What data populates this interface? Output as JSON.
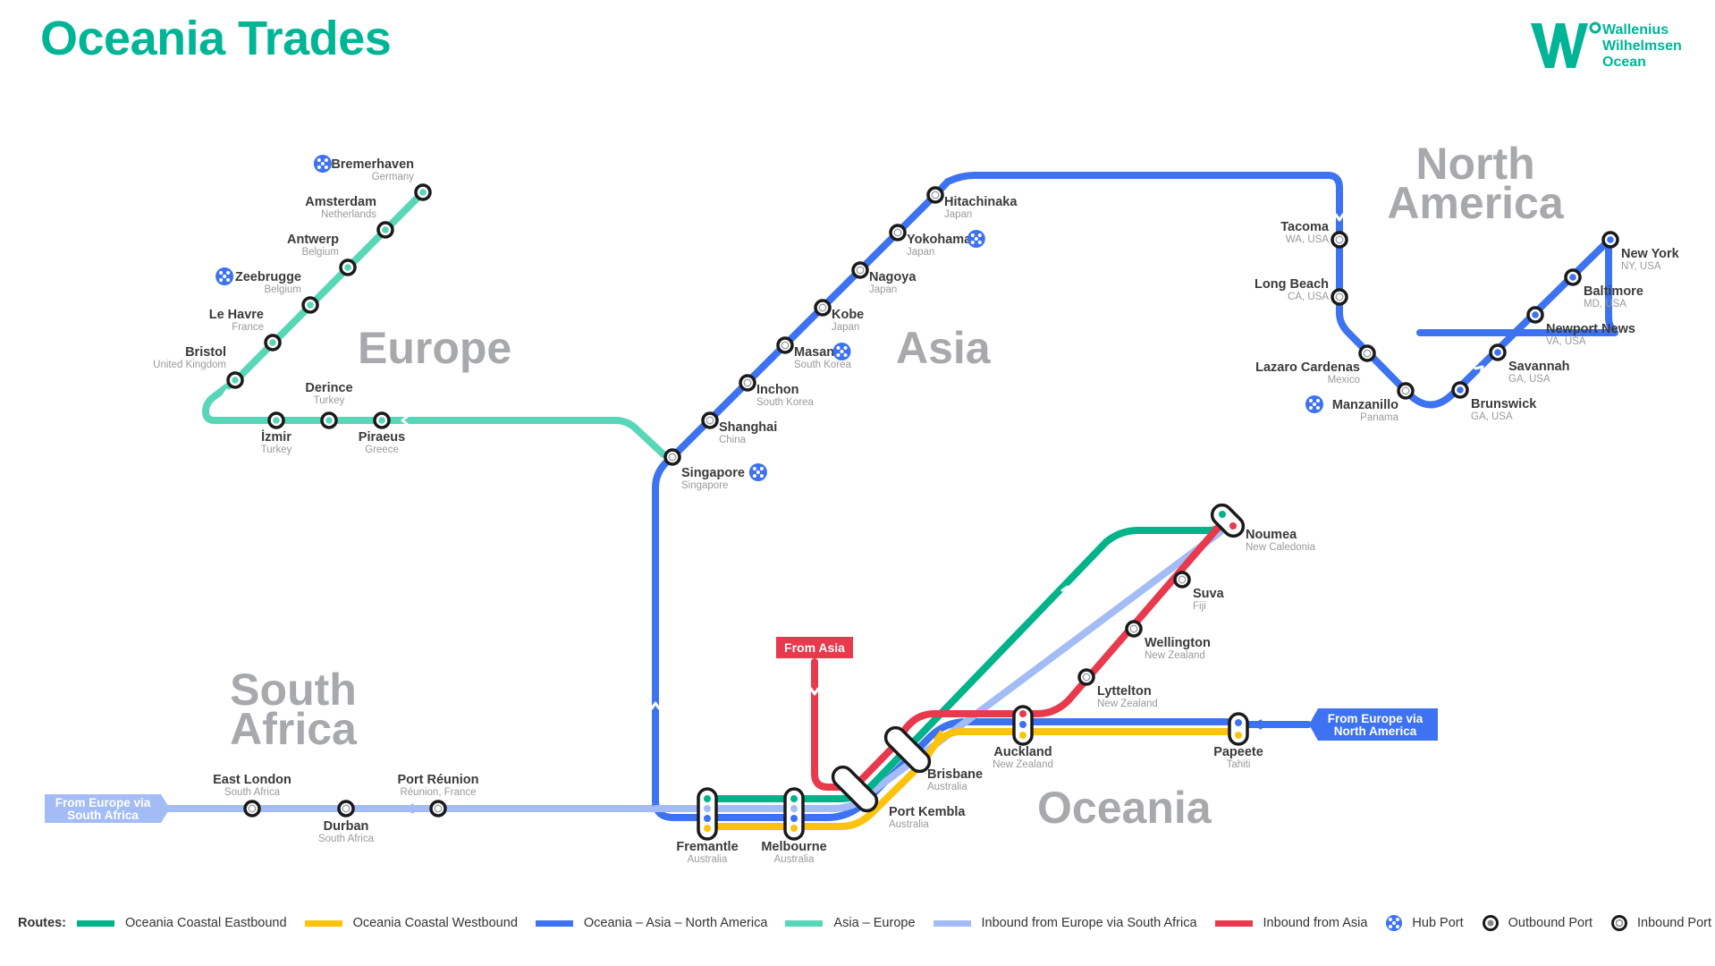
{
  "title": "Oceania Trades",
  "logo": {
    "line1": "Wallenius",
    "line2": "Wilhelmsen",
    "line3": "Ocean"
  },
  "colors": {
    "coastal_east": "#00b389",
    "coastal_west": "#fcc30d",
    "asia_na": "#3d72f0",
    "asia_europe": "#58d6b8",
    "inbound_sa": "#a4bcf5",
    "inbound_asia": "#e8394d",
    "region_text": "#a8a9ad",
    "brand": "#00b595"
  },
  "regions": {
    "europe": "Europe",
    "asia": "Asia",
    "na_line1": "North",
    "na_line2": "America",
    "sa_line1": "South",
    "sa_line2": "Africa",
    "oceania": "Oceania"
  },
  "ports": {
    "bremerhaven": {
      "name": "Bremerhaven",
      "country": "Germany"
    },
    "amsterdam": {
      "name": "Amsterdam",
      "country": "Netherlands"
    },
    "antwerp": {
      "name": "Antwerp",
      "country": "Belgium"
    },
    "zeebrugge": {
      "name": "Zeebrugge",
      "country": "Belgium"
    },
    "lehavre": {
      "name": "Le Havre",
      "country": "France"
    },
    "bristol": {
      "name": "Bristol",
      "country": "United Kingdom"
    },
    "derince": {
      "name": "Derince",
      "country": "Turkey"
    },
    "izmir": {
      "name": "İzmir",
      "country": "Turkey"
    },
    "piraeus": {
      "name": "Piraeus",
      "country": "Greece"
    },
    "hitachinaka": {
      "name": "Hitachinaka",
      "country": "Japan"
    },
    "yokohama": {
      "name": "Yokohama",
      "country": "Japan"
    },
    "nagoya": {
      "name": "Nagoya",
      "country": "Japan"
    },
    "kobe": {
      "name": "Kobe",
      "country": "Japan"
    },
    "masan": {
      "name": "Masan",
      "country": "South Korea"
    },
    "inchon": {
      "name": "Inchon",
      "country": "South Korea"
    },
    "shanghai": {
      "name": "Shanghai",
      "country": "China"
    },
    "singapore": {
      "name": "Singapore",
      "country": "Singapore"
    },
    "tacoma": {
      "name": "Tacoma",
      "country": "WA, USA"
    },
    "longbeach": {
      "name": "Long Beach",
      "country": "CA, USA"
    },
    "lazaro": {
      "name": "Lazaro Cardenas",
      "country": "Mexico"
    },
    "manzanillo": {
      "name": "Manzanillo",
      "country": "Panama"
    },
    "brunswick": {
      "name": "Brunswick",
      "country": "GA, USA"
    },
    "savannah": {
      "name": "Savannah",
      "country": "GA, USA"
    },
    "newportnews": {
      "name": "Newport News",
      "country": "VA, USA"
    },
    "baltimore": {
      "name": "Baltimore",
      "country": "MD, USA"
    },
    "newyork": {
      "name": "New York",
      "country": "NY, USA"
    },
    "eastlondon": {
      "name": "East London",
      "country": "South Africa"
    },
    "durban": {
      "name": "Durban",
      "country": "South Africa"
    },
    "portreunion": {
      "name": "Port Réunion",
      "country": "Réunion, France"
    },
    "fremantle": {
      "name": "Fremantle",
      "country": "Australia"
    },
    "melbourne": {
      "name": "Melbourne",
      "country": "Australia"
    },
    "portkembla": {
      "name": "Port Kembla",
      "country": "Australia"
    },
    "brisbane": {
      "name": "Brisbane",
      "country": "Australia"
    },
    "auckland": {
      "name": "Auckland",
      "country": "New Zealand"
    },
    "papeete": {
      "name": "Papeete",
      "country": "Tahiti"
    },
    "noumea": {
      "name": "Noumea",
      "country": "New Caledonia"
    },
    "suva": {
      "name": "Suva",
      "country": "Fiji"
    },
    "wellington": {
      "name": "Wellington",
      "country": "New Zealand"
    },
    "lyttelton": {
      "name": "Lyttelton",
      "country": "New Zealand"
    }
  },
  "callouts": {
    "from_asia": "From Asia",
    "from_europe_sa_1": "From Europe via",
    "from_europe_sa_2": "South Africa",
    "from_europe_na_1": "From Europe via",
    "from_europe_na_2": "North America"
  },
  "legend": {
    "label": "Routes:",
    "coastal_east": "Oceania Coastal Eastbound",
    "coastal_west": "Oceania Coastal Westbound",
    "asia_na": "Oceania – Asia – North America",
    "asia_europe": "Asia – Europe",
    "inbound_sa": "Inbound from Europe via South Africa",
    "inbound_asia": "Inbound from Asia",
    "hub": "Hub Port",
    "outbound": "Outbound Port",
    "inbound": "Inbound Port"
  }
}
